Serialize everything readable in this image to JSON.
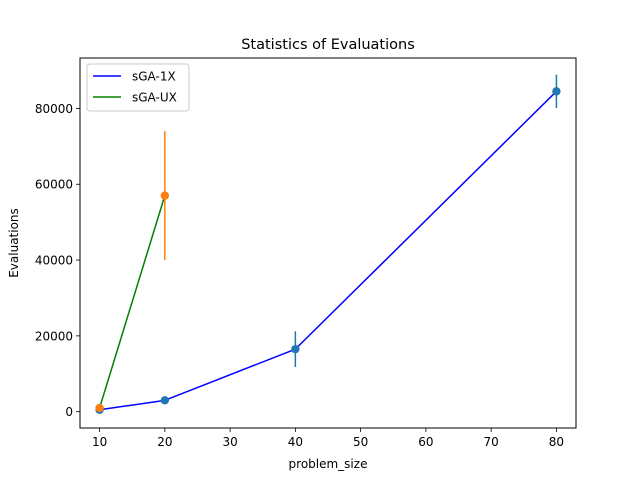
{
  "chart_data": {
    "type": "line",
    "title": "Statistics of Evaluations",
    "xlabel": "problem_size",
    "ylabel": "Evaluations",
    "xlim": [
      7,
      83
    ],
    "ylim": [
      -4300,
      93300
    ],
    "xticks": [
      10,
      20,
      30,
      40,
      50,
      60,
      70,
      80
    ],
    "yticks": [
      0,
      20000,
      40000,
      60000,
      80000
    ],
    "grid": false,
    "legend_position": "top-left",
    "series": [
      {
        "name": "sGA-1X",
        "line_color": "#0000ff",
        "marker_color": "#1f77b4",
        "x": [
          10,
          20,
          40,
          80
        ],
        "y": [
          500,
          3000,
          16500,
          84500
        ],
        "yerr": [
          300,
          600,
          4700,
          4400
        ]
      },
      {
        "name": "sGA-UX",
        "line_color": "#008000",
        "marker_color": "#ff7f0e",
        "x": [
          10,
          20
        ],
        "y": [
          1000,
          57000
        ],
        "yerr": [
          500,
          17000
        ]
      }
    ]
  }
}
